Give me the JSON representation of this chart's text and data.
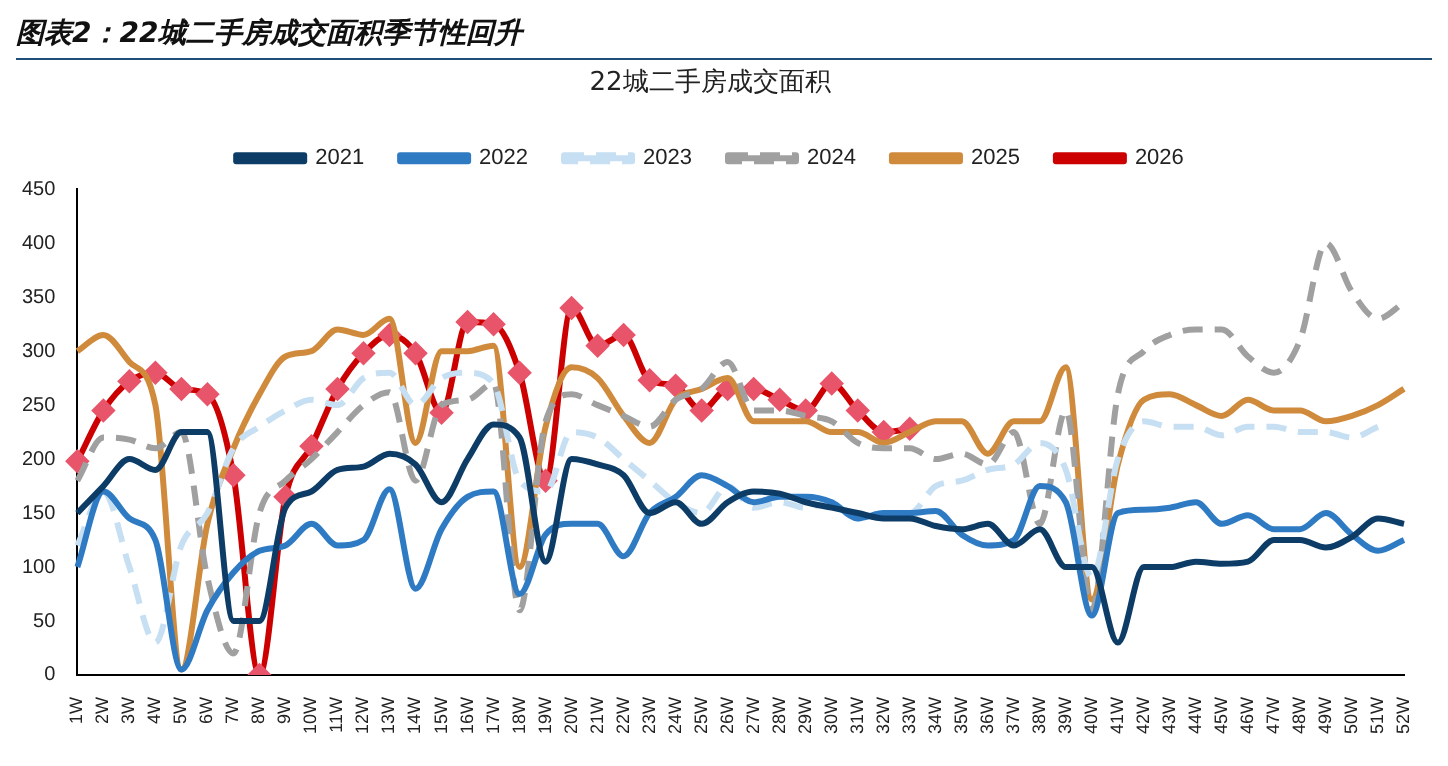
{
  "chart_data": {
    "type": "line",
    "title": "图表2：22城二手房成交面积季节性回升",
    "subtitle": "22城二手房成交面积",
    "categories": [
      "1W",
      "2W",
      "3W",
      "4W",
      "5W",
      "6W",
      "7W",
      "8W",
      "9W",
      "10W",
      "11W",
      "12W",
      "13W",
      "14W",
      "15W",
      "16W",
      "17W",
      "18W",
      "19W",
      "20W",
      "21W",
      "22W",
      "23W",
      "24W",
      "25W",
      "26W",
      "27W",
      "28W",
      "29W",
      "30W",
      "31W",
      "32W",
      "33W",
      "34W",
      "35W",
      "36W",
      "37W",
      "38W",
      "39W",
      "40W",
      "41W",
      "42W",
      "43W",
      "44W",
      "45W",
      "46W",
      "47W",
      "48W",
      "49W",
      "50W",
      "51W",
      "52W"
    ],
    "series": [
      {
        "name": "2021",
        "color": "#0d3d66",
        "line_style": "solid",
        "marker": "none",
        "values": [
          150,
          175,
          200,
          190,
          225,
          225,
          50,
          50,
          155,
          170,
          190,
          193,
          205,
          195,
          160,
          200,
          232,
          220,
          105,
          200,
          195,
          185,
          150,
          160,
          140,
          160,
          170,
          168,
          160,
          155,
          150,
          145,
          145,
          138,
          135,
          140,
          120,
          135,
          100,
          100,
          30,
          100,
          100,
          105,
          103,
          105,
          125,
          125,
          118,
          128,
          145,
          140
        ]
      },
      {
        "name": "2022",
        "color": "#2e7bc4",
        "line_style": "solid",
        "marker": "none",
        "values": [
          100,
          170,
          145,
          125,
          5,
          60,
          95,
          115,
          120,
          140,
          120,
          125,
          172,
          80,
          135,
          165,
          170,
          75,
          130,
          140,
          140,
          110,
          150,
          165,
          185,
          175,
          160,
          165,
          165,
          160,
          145,
          150,
          150,
          152,
          130,
          120,
          125,
          175,
          160,
          55,
          150,
          153,
          155,
          160,
          140,
          148,
          135,
          135,
          150,
          130,
          115,
          125
        ]
      },
      {
        "name": "2023",
        "color": "#c6dff2",
        "line_style": "dashed",
        "marker": "none",
        "values": [
          120,
          170,
          100,
          30,
          120,
          150,
          210,
          230,
          245,
          255,
          250,
          275,
          280,
          250,
          275,
          280,
          270,
          180,
          170,
          225,
          220,
          200,
          180,
          160,
          150,
          175,
          155,
          160,
          155,
          160,
          145,
          150,
          150,
          175,
          180,
          190,
          195,
          215,
          190,
          90,
          200,
          235,
          230,
          230,
          222,
          230,
          230,
          225,
          225,
          220,
          230,
          null
        ]
      },
      {
        "name": "2024",
        "color": "#a0a0a0",
        "line_style": "dashed",
        "marker": "none",
        "values": [
          180,
          220,
          218,
          210,
          225,
          90,
          20,
          150,
          180,
          200,
          225,
          250,
          262,
          180,
          250,
          255,
          270,
          60,
          235,
          260,
          250,
          240,
          230,
          255,
          265,
          290,
          245,
          245,
          240,
          235,
          215,
          210,
          210,
          200,
          205,
          195,
          225,
          140,
          245,
          60,
          260,
          300,
          315,
          320,
          320,
          295,
          280,
          310,
          400,
          355,
          330,
          345
        ]
      },
      {
        "name": "2025",
        "color": "#d08a3c",
        "line_style": "solid",
        "marker": "none",
        "values": [
          300,
          315,
          290,
          250,
          5,
          140,
          210,
          260,
          295,
          300,
          320,
          315,
          330,
          215,
          300,
          300,
          305,
          100,
          230,
          285,
          275,
          240,
          215,
          255,
          265,
          275,
          235,
          235,
          235,
          225,
          225,
          215,
          225,
          235,
          235,
          205,
          235,
          235,
          285,
          70,
          195,
          255,
          260,
          250,
          240,
          255,
          245,
          245,
          235,
          240,
          250,
          265
        ]
      },
      {
        "name": "2026",
        "color": "#cc0000",
        "line_style": "solid",
        "marker": "diamond",
        "values": [
          198,
          245,
          272,
          280,
          265,
          260,
          185,
          0,
          165,
          212,
          265,
          298,
          315,
          298,
          243,
          327,
          325,
          280,
          180,
          340,
          305,
          315,
          273,
          268,
          245,
          265,
          265,
          255,
          245,
          270,
          245,
          225,
          228,
          null,
          null,
          null,
          null,
          null,
          null,
          null,
          null,
          null,
          null,
          null,
          null,
          null,
          null,
          null,
          null,
          null,
          null,
          null
        ]
      }
    ],
    "ylim": [
      0,
      450
    ],
    "yticks": [
      0,
      50,
      100,
      150,
      200,
      250,
      300,
      350,
      400,
      450
    ],
    "grid": false,
    "legend": "top"
  }
}
